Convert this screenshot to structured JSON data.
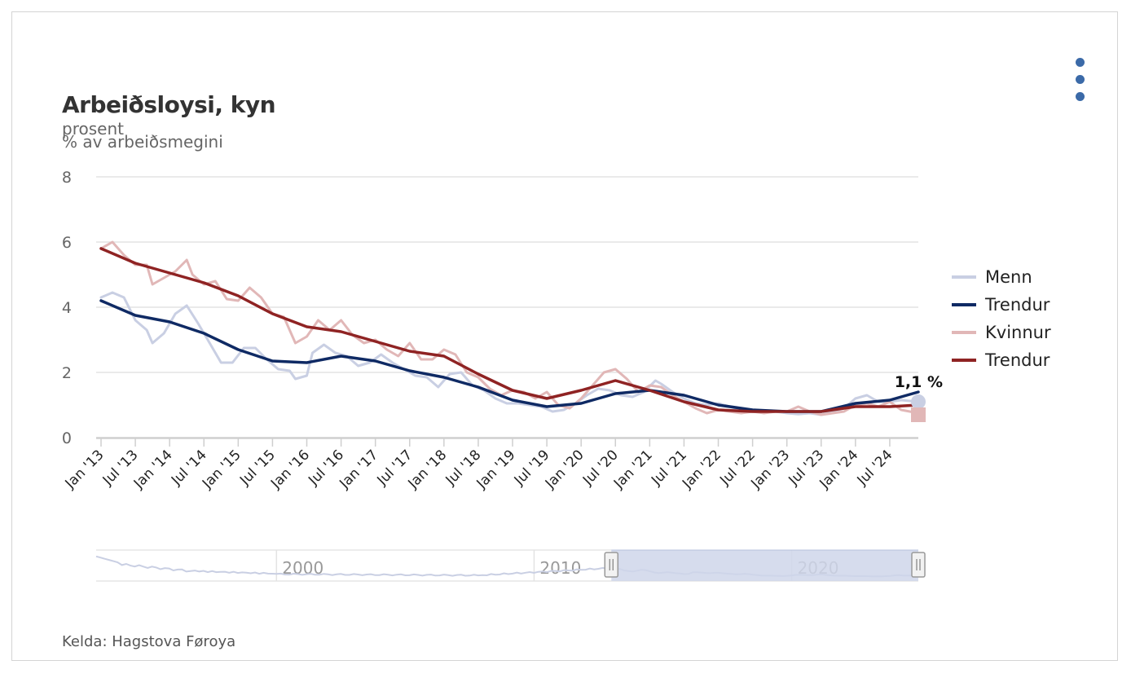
{
  "header": {
    "title": "Arbeiðsloysi, kyn",
    "subtitle_line1": "prosent",
    "subtitle_line2": "% av arbeiðsmegini"
  },
  "footer": {
    "source": "Kelda: Hagstova Føroya"
  },
  "menu": {
    "icon": "vertical-dots-icon",
    "color": "#3b6aa8"
  },
  "chart_data": {
    "type": "line",
    "title": "Arbeiðsloysi, kyn",
    "ylabel": "% av arbeiðsmegini",
    "ylim": [
      0,
      8
    ],
    "yticks": [
      0,
      2,
      4,
      6,
      8
    ],
    "xlim": [
      "2013-01",
      "2024-12"
    ],
    "xtick_labels": [
      "Jan '13",
      "Jul '13",
      "Jan '14",
      "Jul '14",
      "Jan '15",
      "Jul '15",
      "Jan '16",
      "Jul '16",
      "Jan '17",
      "Jul '17",
      "Jan '18",
      "Jul '18",
      "Jan '19",
      "Jul '19",
      "Jan '20",
      "Jul '20",
      "Jan '21",
      "Jul '21",
      "Jan '22",
      "Jul '22",
      "Jan '23",
      "Jul '23",
      "Jan '24",
      "Jul '24"
    ],
    "grid": true,
    "legend_position": "right",
    "end_label": "1,1 %",
    "series": [
      {
        "name": "Menn",
        "color": "#c9cfe3",
        "points": [
          [
            "2013-01",
            4.3
          ],
          [
            "2013-03",
            4.45
          ],
          [
            "2013-05",
            4.3
          ],
          [
            "2013-07",
            3.6
          ],
          [
            "2013-09",
            3.3
          ],
          [
            "2013-10",
            2.9
          ],
          [
            "2013-12",
            3.2
          ],
          [
            "2014-02",
            3.8
          ],
          [
            "2014-04",
            4.05
          ],
          [
            "2014-06",
            3.5
          ],
          [
            "2014-08",
            2.9
          ],
          [
            "2014-10",
            2.3
          ],
          [
            "2014-12",
            2.3
          ],
          [
            "2015-02",
            2.75
          ],
          [
            "2015-04",
            2.75
          ],
          [
            "2015-06",
            2.4
          ],
          [
            "2015-08",
            2.1
          ],
          [
            "2015-10",
            2.05
          ],
          [
            "2015-11",
            1.8
          ],
          [
            "2016-01",
            1.9
          ],
          [
            "2016-02",
            2.6
          ],
          [
            "2016-04",
            2.85
          ],
          [
            "2016-06",
            2.6
          ],
          [
            "2016-08",
            2.5
          ],
          [
            "2016-10",
            2.2
          ],
          [
            "2016-12",
            2.3
          ],
          [
            "2017-02",
            2.55
          ],
          [
            "2017-04",
            2.3
          ],
          [
            "2017-06",
            2.1
          ],
          [
            "2017-08",
            1.9
          ],
          [
            "2017-10",
            1.85
          ],
          [
            "2017-12",
            1.55
          ],
          [
            "2018-02",
            1.95
          ],
          [
            "2018-04",
            2.0
          ],
          [
            "2018-06",
            1.6
          ],
          [
            "2018-08",
            1.45
          ],
          [
            "2018-10",
            1.2
          ],
          [
            "2018-12",
            1.05
          ],
          [
            "2019-02",
            1.05
          ],
          [
            "2019-04",
            1.0
          ],
          [
            "2019-06",
            0.95
          ],
          [
            "2019-08",
            0.8
          ],
          [
            "2019-10",
            0.85
          ],
          [
            "2019-12",
            1.05
          ],
          [
            "2020-02",
            1.3
          ],
          [
            "2020-04",
            1.5
          ],
          [
            "2020-06",
            1.45
          ],
          [
            "2020-08",
            1.3
          ],
          [
            "2020-10",
            1.25
          ],
          [
            "2020-12",
            1.4
          ],
          [
            "2021-02",
            1.75
          ],
          [
            "2021-03",
            1.65
          ],
          [
            "2021-05",
            1.4
          ],
          [
            "2021-07",
            1.2
          ],
          [
            "2021-09",
            1.05
          ],
          [
            "2021-11",
            1.0
          ],
          [
            "2022-01",
            1.05
          ],
          [
            "2022-03",
            0.95
          ],
          [
            "2022-05",
            0.85
          ],
          [
            "2022-07",
            0.8
          ],
          [
            "2022-09",
            0.8
          ],
          [
            "2022-11",
            0.8
          ],
          [
            "2023-01",
            0.75
          ],
          [
            "2023-03",
            0.72
          ],
          [
            "2023-05",
            0.75
          ],
          [
            "2023-07",
            0.7
          ],
          [
            "2023-09",
            0.8
          ],
          [
            "2023-11",
            0.9
          ],
          [
            "2024-01",
            1.2
          ],
          [
            "2024-03",
            1.3
          ],
          [
            "2024-05",
            1.1
          ],
          [
            "2024-07",
            1.1
          ],
          [
            "2024-09",
            1.15
          ],
          [
            "2024-12",
            1.1
          ]
        ]
      },
      {
        "name": "Trendur",
        "color": "#0f2a64",
        "points": [
          [
            "2013-01",
            4.2
          ],
          [
            "2013-07",
            3.75
          ],
          [
            "2014-01",
            3.55
          ],
          [
            "2014-07",
            3.2
          ],
          [
            "2015-01",
            2.7
          ],
          [
            "2015-07",
            2.35
          ],
          [
            "2016-01",
            2.3
          ],
          [
            "2016-07",
            2.5
          ],
          [
            "2017-01",
            2.35
          ],
          [
            "2017-07",
            2.05
          ],
          [
            "2018-01",
            1.85
          ],
          [
            "2018-07",
            1.55
          ],
          [
            "2019-01",
            1.15
          ],
          [
            "2019-07",
            0.95
          ],
          [
            "2020-01",
            1.05
          ],
          [
            "2020-07",
            1.35
          ],
          [
            "2021-01",
            1.45
          ],
          [
            "2021-07",
            1.3
          ],
          [
            "2022-01",
            1.0
          ],
          [
            "2022-07",
            0.85
          ],
          [
            "2023-01",
            0.8
          ],
          [
            "2023-07",
            0.8
          ],
          [
            "2024-01",
            1.05
          ],
          [
            "2024-07",
            1.15
          ],
          [
            "2024-12",
            1.4
          ]
        ]
      },
      {
        "name": "Kvinnur",
        "color": "#e1b7b7",
        "points": [
          [
            "2013-01",
            5.8
          ],
          [
            "2013-03",
            6.0
          ],
          [
            "2013-05",
            5.6
          ],
          [
            "2013-07",
            5.3
          ],
          [
            "2013-09",
            5.3
          ],
          [
            "2013-10",
            4.7
          ],
          [
            "2013-12",
            4.9
          ],
          [
            "2014-02",
            5.1
          ],
          [
            "2014-04",
            5.45
          ],
          [
            "2014-05",
            5.0
          ],
          [
            "2014-07",
            4.7
          ],
          [
            "2014-09",
            4.8
          ],
          [
            "2014-11",
            4.25
          ],
          [
            "2015-01",
            4.2
          ],
          [
            "2015-03",
            4.6
          ],
          [
            "2015-05",
            4.3
          ],
          [
            "2015-07",
            3.8
          ],
          [
            "2015-09",
            3.7
          ],
          [
            "2015-11",
            2.9
          ],
          [
            "2016-01",
            3.1
          ],
          [
            "2016-03",
            3.6
          ],
          [
            "2016-05",
            3.3
          ],
          [
            "2016-07",
            3.6
          ],
          [
            "2016-09",
            3.15
          ],
          [
            "2016-11",
            2.9
          ],
          [
            "2017-01",
            3.0
          ],
          [
            "2017-03",
            2.7
          ],
          [
            "2017-05",
            2.5
          ],
          [
            "2017-07",
            2.9
          ],
          [
            "2017-09",
            2.4
          ],
          [
            "2017-11",
            2.4
          ],
          [
            "2018-01",
            2.7
          ],
          [
            "2018-03",
            2.55
          ],
          [
            "2018-05",
            2.0
          ],
          [
            "2018-07",
            1.85
          ],
          [
            "2018-09",
            1.5
          ],
          [
            "2018-11",
            1.3
          ],
          [
            "2019-01",
            1.45
          ],
          [
            "2019-03",
            1.4
          ],
          [
            "2019-05",
            1.2
          ],
          [
            "2019-07",
            1.4
          ],
          [
            "2019-09",
            1.0
          ],
          [
            "2019-11",
            0.9
          ],
          [
            "2020-01",
            1.2
          ],
          [
            "2020-03",
            1.6
          ],
          [
            "2020-05",
            2.0
          ],
          [
            "2020-07",
            2.1
          ],
          [
            "2020-09",
            1.8
          ],
          [
            "2020-11",
            1.4
          ],
          [
            "2021-01",
            1.6
          ],
          [
            "2021-03",
            1.55
          ],
          [
            "2021-05",
            1.3
          ],
          [
            "2021-07",
            1.1
          ],
          [
            "2021-09",
            0.9
          ],
          [
            "2021-11",
            0.75
          ],
          [
            "2022-01",
            0.85
          ],
          [
            "2022-03",
            0.8
          ],
          [
            "2022-05",
            0.75
          ],
          [
            "2022-07",
            0.8
          ],
          [
            "2022-09",
            0.75
          ],
          [
            "2022-11",
            0.8
          ],
          [
            "2023-01",
            0.8
          ],
          [
            "2023-03",
            0.95
          ],
          [
            "2023-05",
            0.8
          ],
          [
            "2023-07",
            0.7
          ],
          [
            "2023-09",
            0.75
          ],
          [
            "2023-11",
            0.8
          ],
          [
            "2024-01",
            1.0
          ],
          [
            "2024-03",
            1.05
          ],
          [
            "2024-05",
            0.95
          ],
          [
            "2024-07",
            1.1
          ],
          [
            "2024-09",
            0.85
          ],
          [
            "2024-12",
            0.75
          ]
        ]
      },
      {
        "name": "Trendur",
        "color": "#8f2323",
        "points": [
          [
            "2013-01",
            5.8
          ],
          [
            "2013-07",
            5.35
          ],
          [
            "2014-01",
            5.05
          ],
          [
            "2014-07",
            4.75
          ],
          [
            "2015-01",
            4.35
          ],
          [
            "2015-07",
            3.8
          ],
          [
            "2016-01",
            3.4
          ],
          [
            "2016-07",
            3.25
          ],
          [
            "2017-01",
            2.95
          ],
          [
            "2017-07",
            2.65
          ],
          [
            "2018-01",
            2.5
          ],
          [
            "2018-07",
            1.95
          ],
          [
            "2019-01",
            1.45
          ],
          [
            "2019-07",
            1.2
          ],
          [
            "2020-01",
            1.45
          ],
          [
            "2020-07",
            1.75
          ],
          [
            "2021-01",
            1.45
          ],
          [
            "2021-07",
            1.1
          ],
          [
            "2022-01",
            0.85
          ],
          [
            "2022-07",
            0.8
          ],
          [
            "2023-01",
            0.8
          ],
          [
            "2023-07",
            0.8
          ],
          [
            "2024-01",
            0.95
          ],
          [
            "2024-07",
            0.95
          ],
          [
            "2024-12",
            1.0
          ]
        ]
      }
    ]
  },
  "navigator": {
    "labels": [
      "2000",
      "2010",
      "2020"
    ],
    "range_start": "2013-01",
    "range_end": "2024-12",
    "data_start": "1993-01",
    "data_end": "2024-12",
    "mask_color": "#cfd6ea",
    "handle_icon": "drag-handle-icon"
  }
}
